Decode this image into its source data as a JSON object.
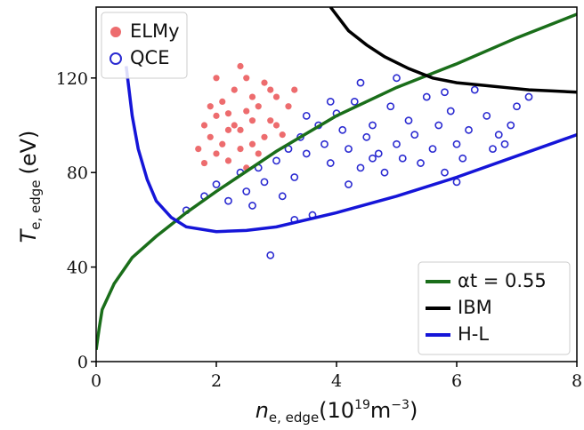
{
  "chart_data": {
    "type": "scatter",
    "xlabel": [
      "n",
      "e, edge",
      "(10",
      "19",
      "m",
      "−3",
      ")"
    ],
    "ylabel": [
      "T",
      "e, edge",
      "(eV)"
    ],
    "xlim": [
      0,
      8
    ],
    "ylim": [
      0,
      150
    ],
    "xticks": [
      0,
      2,
      4,
      6,
      8
    ],
    "yticks": [
      0,
      40,
      80,
      120
    ],
    "legend_markers": "upper left",
    "legend_lines": "lower right",
    "series": [
      {
        "name": "ELMy",
        "mode": "markers",
        "filled": true,
        "color": "#e8474a",
        "x": [
          1.8,
          1.9,
          2.0,
          2.1,
          2.2,
          2.3,
          2.4,
          2.5,
          2.6,
          2.7,
          2.8,
          2.9,
          3.0,
          3.1,
          2.2,
          2.0,
          1.7,
          2.5,
          2.3,
          2.6,
          2.8,
          3.2,
          2.4,
          2.1,
          1.9,
          2.7,
          3.0,
          2.9,
          2.2,
          2.5,
          1.8,
          2.6,
          3.3,
          2.4,
          2.0
        ],
        "values": [
          100,
          95,
          88,
          110,
          105,
          115,
          98,
          120,
          92,
          108,
          118,
          102,
          112,
          96,
          85,
          120,
          90,
          82,
          100,
          112,
          95,
          108,
          125,
          92,
          108,
          88,
          100,
          115,
          98,
          106,
          84,
          102,
          115,
          90,
          104
        ]
      },
      {
        "name": "QCE",
        "mode": "markers",
        "filled": false,
        "color": "#2b2bd1",
        "x": [
          1.5,
          1.8,
          2.0,
          2.2,
          2.4,
          2.5,
          2.6,
          2.8,
          3.0,
          3.1,
          3.2,
          3.3,
          3.4,
          3.5,
          3.6,
          3.7,
          3.8,
          3.9,
          4.0,
          4.1,
          4.2,
          4.3,
          4.4,
          4.5,
          4.6,
          4.7,
          4.8,
          4.9,
          5.0,
          5.1,
          5.2,
          5.3,
          5.4,
          5.5,
          5.6,
          5.7,
          5.8,
          5.9,
          6.0,
          6.1,
          6.2,
          6.3,
          6.5,
          6.6,
          6.7,
          6.9,
          7.0,
          7.2,
          2.9,
          3.3,
          4.4,
          5.0,
          3.5,
          4.2,
          6.0,
          2.7,
          3.9,
          4.6,
          5.8,
          6.8
        ],
        "values": [
          64,
          70,
          75,
          68,
          80,
          72,
          66,
          76,
          85,
          70,
          90,
          78,
          95,
          88,
          62,
          100,
          92,
          84,
          105,
          98,
          90,
          110,
          82,
          95,
          100,
          88,
          80,
          108,
          92,
          86,
          102,
          96,
          84,
          112,
          90,
          100,
          80,
          106,
          92,
          86,
          98,
          115,
          104,
          90,
          96,
          100,
          108,
          112,
          45,
          60,
          118,
          120,
          104,
          75,
          76,
          82,
          110,
          86,
          114,
          92
        ]
      },
      {
        "name": "αt = 0.55",
        "mode": "line",
        "color": "#1a6e1a",
        "x": [
          0,
          0.05,
          0.1,
          0.3,
          0.6,
          1,
          1.5,
          2,
          3,
          4,
          5,
          6,
          7,
          8
        ],
        "values": [
          5,
          14,
          22,
          33,
          44,
          53,
          63,
          72,
          89,
          104,
          116,
          126,
          137,
          147
        ]
      },
      {
        "name": "IBM",
        "mode": "line",
        "color": "#000000",
        "x": [
          3.9,
          4.2,
          4.5,
          4.8,
          5.2,
          5.6,
          6.0,
          6.4,
          6.8,
          7.2,
          7.6,
          8
        ],
        "values": [
          150,
          140,
          134,
          129,
          124,
          120,
          118,
          117,
          116,
          115,
          114.5,
          114
        ]
      },
      {
        "name": "H-L",
        "mode": "line",
        "color": "#1515d8",
        "x": [
          0.5,
          0.6,
          0.7,
          0.85,
          1,
          1.25,
          1.5,
          2,
          2.5,
          3,
          4,
          5,
          6,
          7,
          8
        ],
        "values": [
          125,
          104,
          90,
          77,
          68,
          61,
          57,
          55,
          55.5,
          57,
          63,
          70,
          78,
          87,
          96
        ]
      }
    ]
  }
}
